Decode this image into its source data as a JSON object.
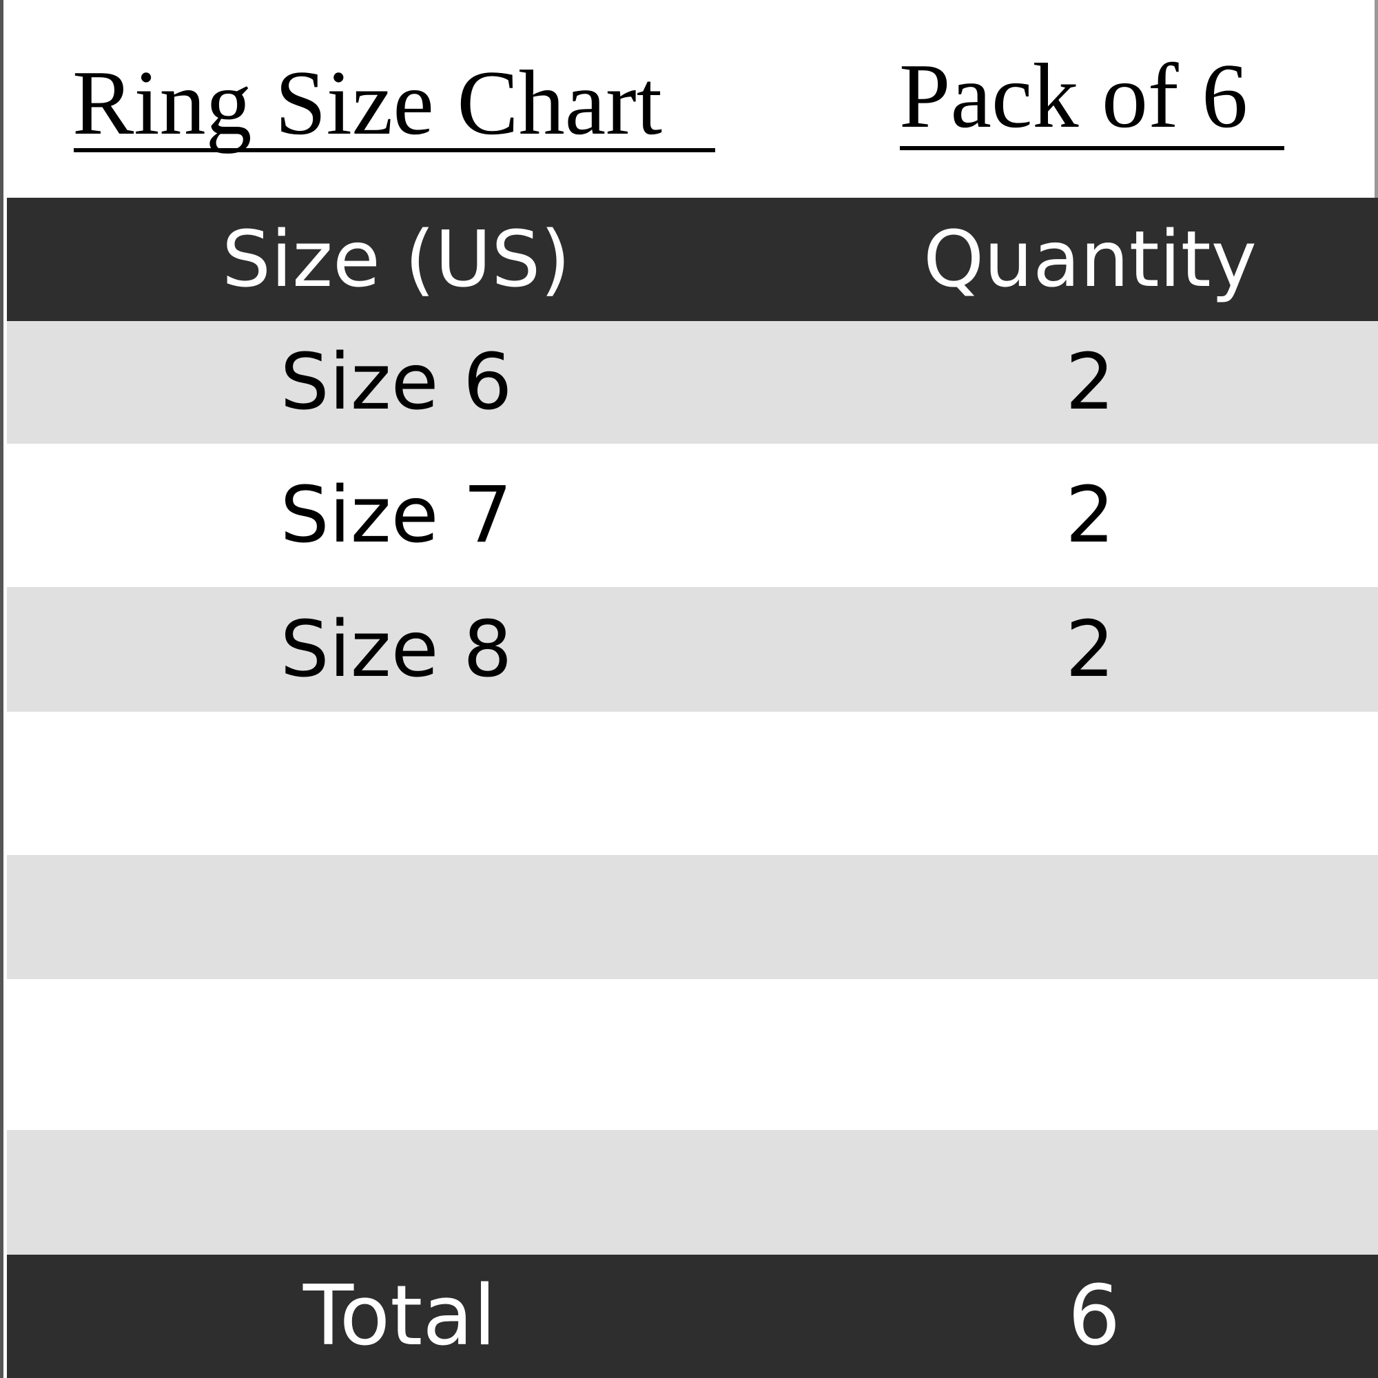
{
  "header": {
    "title": "Ring Size Chart",
    "pack": "Pack of 6"
  },
  "table": {
    "columns": [
      "Size (US)",
      "Quantity"
    ],
    "rows": [
      [
        "Size 6",
        "2"
      ],
      [
        "Size 7",
        "2"
      ],
      [
        "Size 8",
        "2"
      ],
      [
        "",
        ""
      ],
      [
        "",
        ""
      ],
      [
        "",
        ""
      ],
      [
        "",
        ""
      ]
    ],
    "total": [
      "Total",
      "6"
    ]
  },
  "colors": {
    "header_bg": "#2e2e2e",
    "stripe": "#e0e0e0"
  }
}
